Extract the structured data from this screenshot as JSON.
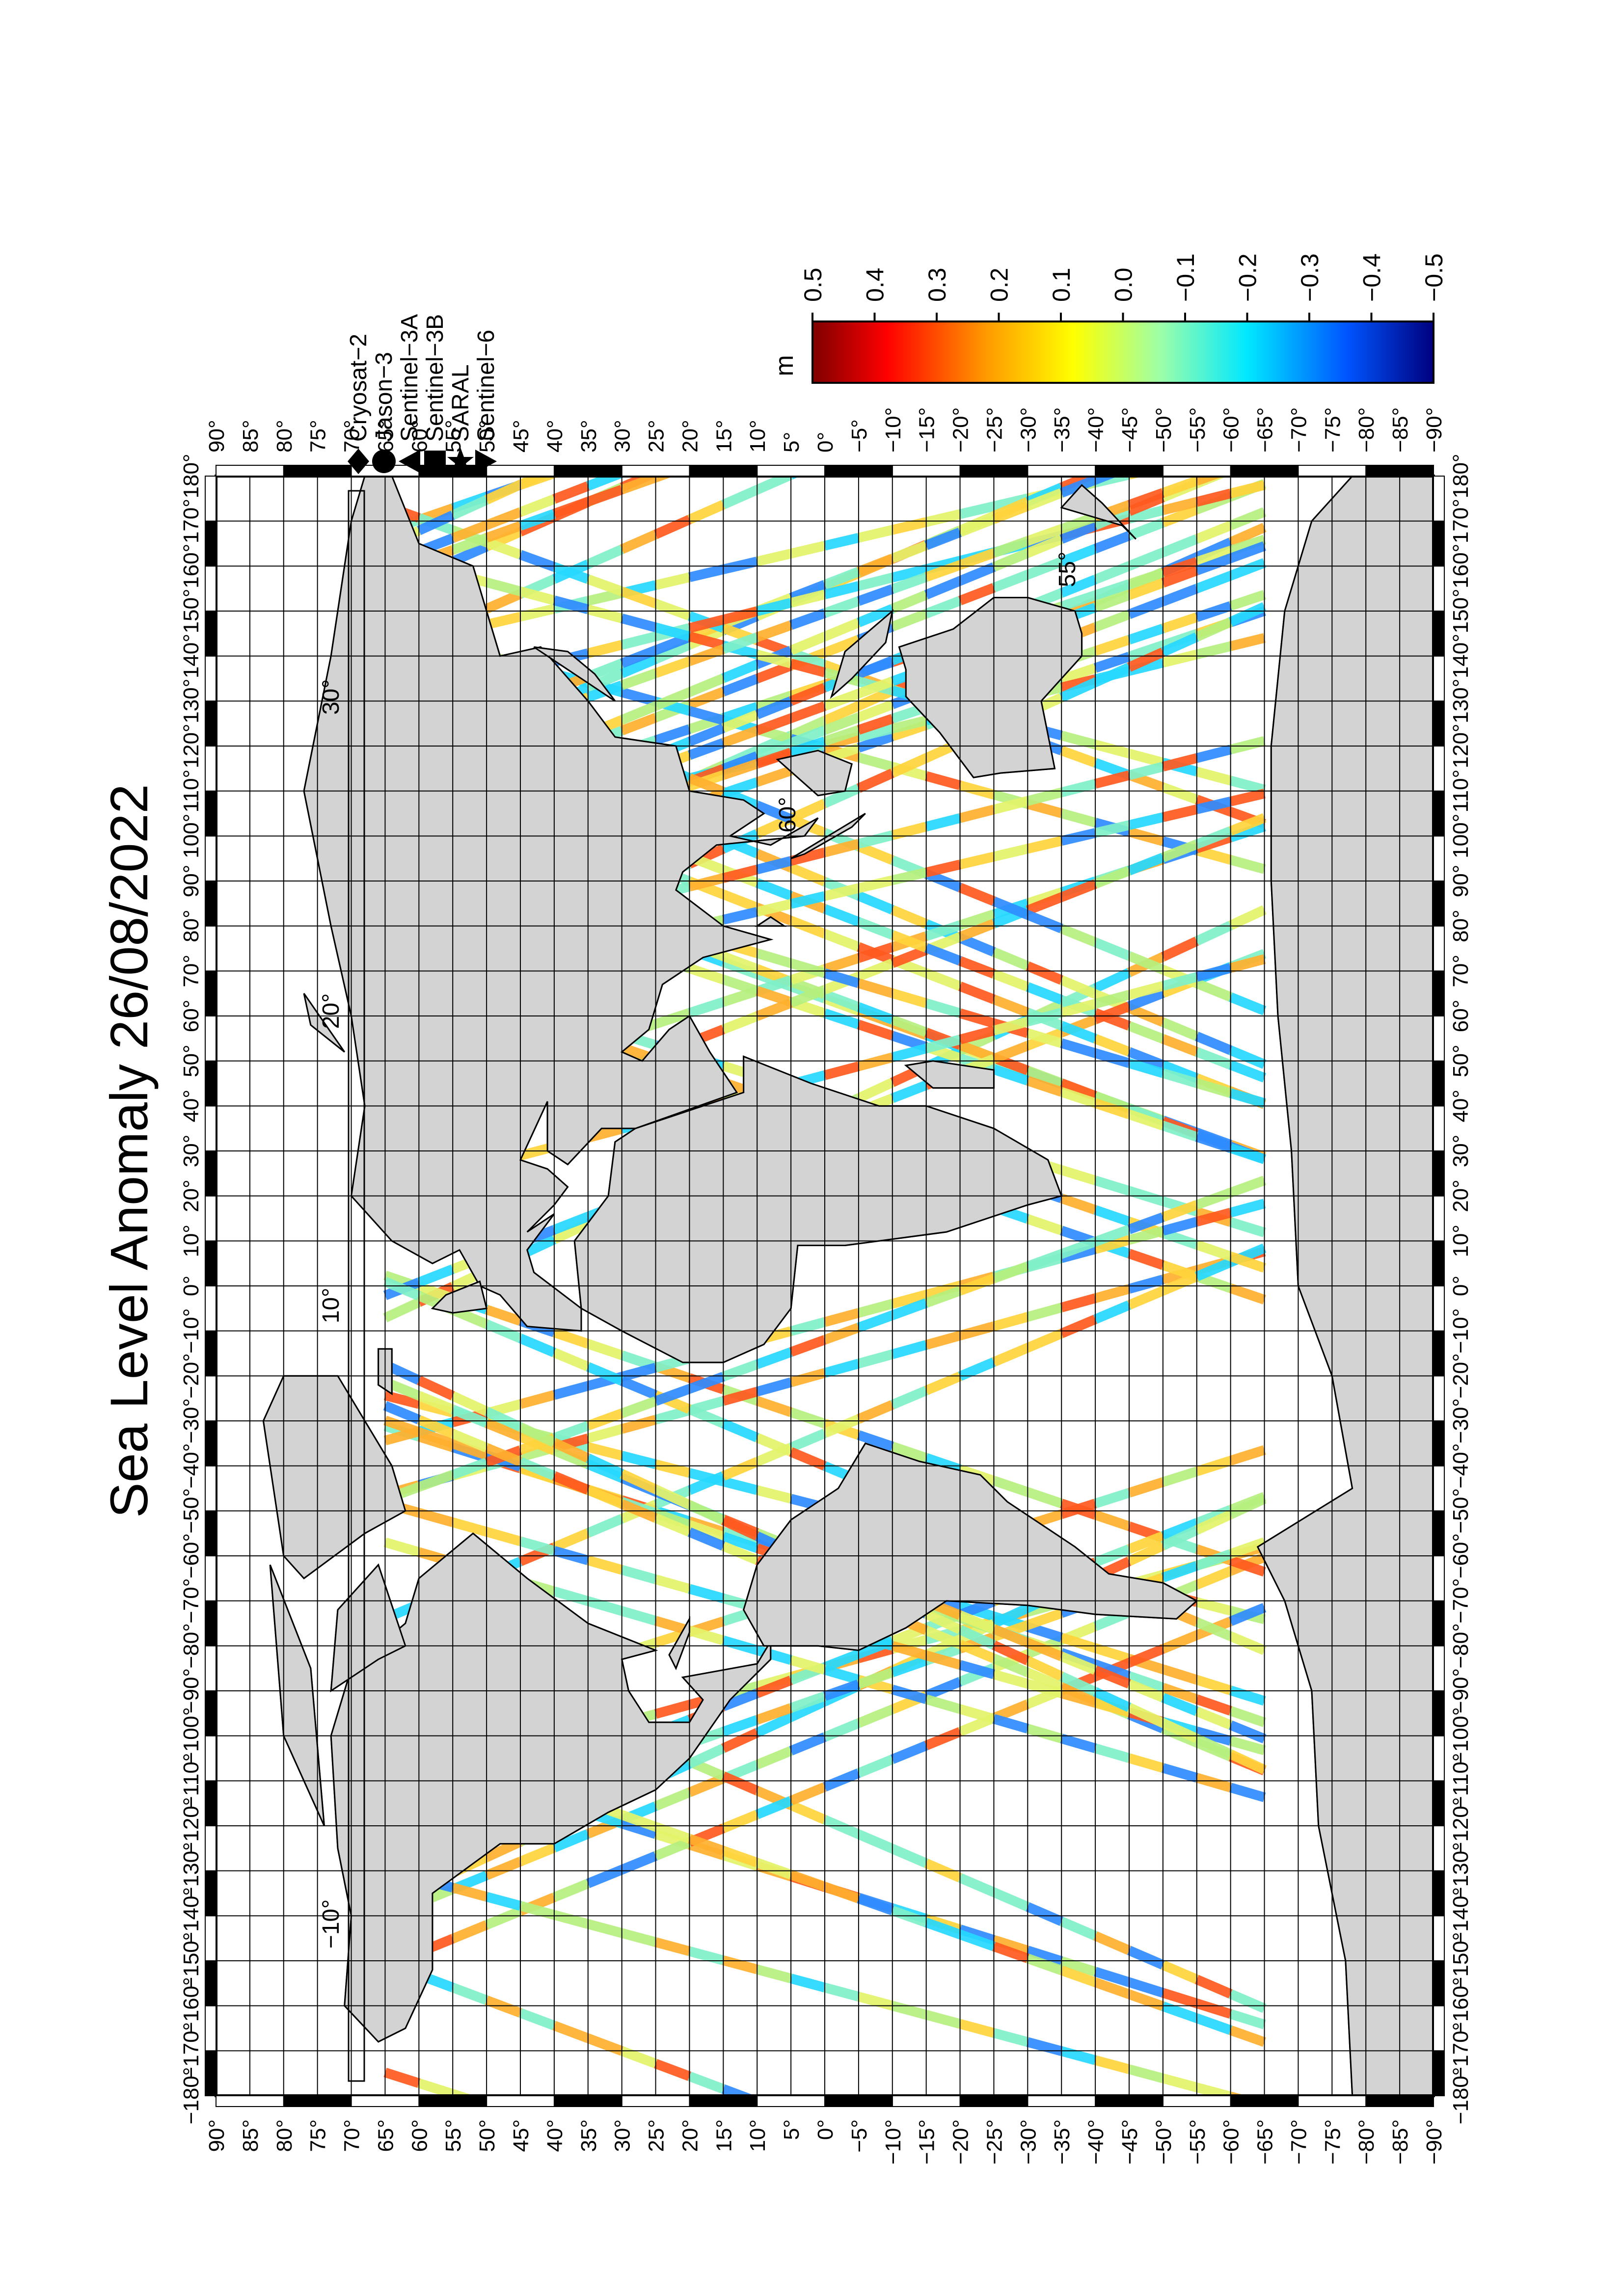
{
  "title": "Sea Level Anomaly 26/08/2022",
  "colorbar": {
    "unit": "m",
    "ticks": [
      "0.5",
      "0.4",
      "0.3",
      "0.2",
      "0.1",
      "0.0",
      "−0.1",
      "−0.2",
      "−0.3",
      "−0.4",
      "−0.5"
    ],
    "gradient_colors": [
      "#7f0000",
      "#ff0000",
      "#ff8c00",
      "#ffff00",
      "#7fffb0",
      "#00e5ff",
      "#0066ff",
      "#00007f"
    ]
  },
  "legend": [
    {
      "symbol": "diamond",
      "label": "Cryosat−2"
    },
    {
      "symbol": "circle",
      "label": "Jason−3"
    },
    {
      "symbol": "triangle-up",
      "label": "Sentinel−3A"
    },
    {
      "symbol": "square",
      "label": "Sentinel−3B"
    },
    {
      "symbol": "star",
      "label": "SARAL"
    },
    {
      "symbol": "triangle-down",
      "label": "Sentinel−6"
    }
  ],
  "latitude_labels": [
    "90°",
    "85°",
    "80°",
    "75°",
    "70°",
    "65°",
    "60°",
    "55°",
    "50°",
    "45°",
    "40°",
    "35°",
    "30°",
    "25°",
    "20°",
    "15°",
    "10°",
    "5°",
    "0°",
    "−5°",
    "−10°",
    "−15°",
    "−20°",
    "−25°",
    "−30°",
    "−35°",
    "−40°",
    "−45°",
    "−50°",
    "−55°",
    "−60°",
    "−65°",
    "−70°",
    "−75°",
    "−80°",
    "−85°",
    "−90°"
  ],
  "longitude_labels": [
    "−180°",
    "−170°",
    "−160°",
    "−150°",
    "−140°",
    "−130°",
    "−120°",
    "−110°",
    "−100°",
    "−90°",
    "−80°",
    "−70°",
    "−60°",
    "−50°",
    "−40°",
    "−30°",
    "−20°",
    "−10°",
    "0°",
    "10°",
    "20°",
    "30°",
    "40°",
    "50°",
    "60°",
    "70°",
    "80°",
    "90°",
    "100°",
    "110°",
    "120°",
    "130°",
    "140°",
    "150°",
    "160°",
    "170°",
    "180°"
  ],
  "inner_labels": [
    "−10°",
    "10°",
    "20°",
    "30°",
    "60°",
    "55°"
  ],
  "map": {
    "land_color": "#d3d3d3",
    "ocean_color": "#ffffff",
    "track_colors": [
      "#b6f07e",
      "#e4f46a",
      "#ffd43b",
      "#ffb02e",
      "#ff5a1f",
      "#7ff0c8",
      "#26d9ff",
      "#2f8cff"
    ]
  }
}
